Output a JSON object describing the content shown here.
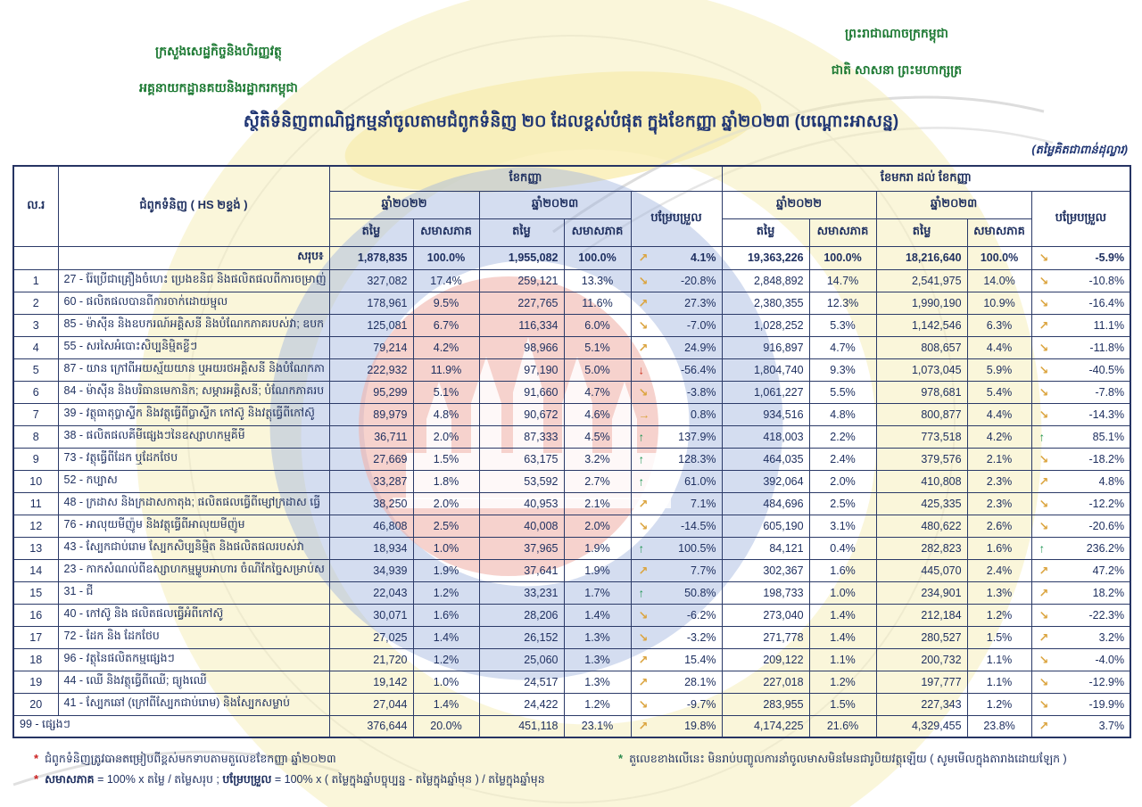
{
  "page": {
    "kingdom_line1": "ព្រះរាជាណាចក្រកម្ពុជា",
    "kingdom_line2": "ជាតិ សាសនា ព្រះមហាក្សត្រ",
    "ministry_line1": "ក្រសួងសេដ្ឋកិច្ចនិងហិរញ្ញវត្ថុ",
    "ministry_line2": "អគ្គនាយកដ្ឋានគយនិងរដ្ឋាករកម្ពុជា",
    "title": "ស្ថិតិទំនិញពាណិជ្ជកម្មនាំចូលតាមជំពូកទំនិញ ២០ ដែលខ្ពស់បំផុត ក្នុងខែកញ្ញា ឆ្នាំ២០២៣ (បណ្ដោះអាសន្ន)",
    "unit_note": "(តម្លៃគិតជាពាន់ដុល្លារ)"
  },
  "table": {
    "headers": {
      "no": "ល.រ",
      "commodity": "ជំពូកទំនិញ ( HS ២ខ្ទង់ )",
      "september": "ខែកញ្ញា",
      "jan_to_sep": "ខែមករា ដល់ ខែកញ្ញា",
      "year2022": "ឆ្នាំ២០២២",
      "year2023": "ឆ្នាំ២០២៣",
      "value": "តម្លៃ",
      "share": "សមាសភាគ",
      "change": "បម្រែបម្រួល"
    },
    "total": {
      "label": "សរុប៖",
      "s22v": "1,878,835",
      "s22s": "100.0%",
      "s23v": "1,955,082",
      "s23s": "100.0%",
      "c1": "4.1%",
      "d1": "ne",
      "y22v": "19,363,226",
      "y22s": "100.0%",
      "y23v": "18,216,640",
      "y23s": "100.0%",
      "c2": "-5.9%",
      "d2": "se"
    },
    "rows": [
      {
        "no": "1",
        "desc": "27 - រ៉ែប្រើជាគ្រឿងចំហេះ ប្រេងខនិជ និងផលិតផលពីការចម្រាញ់",
        "s22v": "327,082",
        "s22s": "17.4%",
        "s23v": "259,121",
        "s23s": "13.3%",
        "c1": "-20.8%",
        "d1": "se",
        "y22v": "2,848,892",
        "y22s": "14.7%",
        "y23v": "2,541,975",
        "y23s": "14.0%",
        "c2": "-10.8%",
        "d2": "se"
      },
      {
        "no": "2",
        "desc": "60 - ផលិតផលបានពីការចាក់ដោយម្ជុល",
        "s22v": "178,961",
        "s22s": "9.5%",
        "s23v": "227,765",
        "s23s": "11.6%",
        "c1": "27.3%",
        "d1": "ne",
        "y22v": "2,380,355",
        "y22s": "12.3%",
        "y23v": "1,990,190",
        "y23s": "10.9%",
        "c2": "-16.4%",
        "d2": "se"
      },
      {
        "no": "3",
        "desc": "85 - ម៉ាស៊ីន និងឧបករណ៍អគ្គិសនី និងបំណែកភាគរបស់វា; ឧបក",
        "s22v": "125,081",
        "s22s": "6.7%",
        "s23v": "116,334",
        "s23s": "6.0%",
        "c1": "-7.0%",
        "d1": "se",
        "y22v": "1,028,252",
        "y22s": "5.3%",
        "y23v": "1,142,546",
        "y23s": "6.3%",
        "c2": "11.1%",
        "d2": "ne"
      },
      {
        "no": "4",
        "desc": "55 - សរសៃអំបោះសិប្បនិម្មិតខ្លីៗ",
        "s22v": "79,214",
        "s22s": "4.2%",
        "s23v": "98,966",
        "s23s": "5.1%",
        "c1": "24.9%",
        "d1": "ne",
        "y22v": "916,897",
        "y22s": "4.7%",
        "y23v": "808,657",
        "y23s": "4.4%",
        "c2": "-11.8%",
        "d2": "se"
      },
      {
        "no": "5",
        "desc": "87 - យាន ក្រៅពីអយស្ម័យយាន ឬអយរថអគ្គិសនី និងបំណែកភា",
        "s22v": "222,932",
        "s22s": "11.9%",
        "s23v": "97,190",
        "s23s": "5.0%",
        "c1": "-56.4%",
        "d1": "down",
        "y22v": "1,804,740",
        "y22s": "9.3%",
        "y23v": "1,073,045",
        "y23s": "5.9%",
        "c2": "-40.5%",
        "d2": "se"
      },
      {
        "no": "6",
        "desc": "84 - ម៉ាស៊ីន និងបរិធានមេកានិក; សម្ភារអគ្គិសនី; បំណែកភាគរប",
        "s22v": "95,299",
        "s22s": "5.1%",
        "s23v": "91,660",
        "s23s": "4.7%",
        "c1": "-3.8%",
        "d1": "se",
        "y22v": "1,061,227",
        "y22s": "5.5%",
        "y23v": "978,681",
        "y23s": "5.4%",
        "c2": "-7.8%",
        "d2": "se"
      },
      {
        "no": "7",
        "desc": "39 - វត្ថុធាតុប្លាស្ទីក និងវត្ថុធ្វើពីប្លាស្ទីក កៅស៊ូ និងវត្ថុធ្វើពីកៅស៊ូ",
        "s22v": "89,979",
        "s22s": "4.8%",
        "s23v": "90,672",
        "s23s": "4.6%",
        "c1": "0.8%",
        "d1": "flat",
        "y22v": "934,516",
        "y22s": "4.8%",
        "y23v": "800,877",
        "y23s": "4.4%",
        "c2": "-14.3%",
        "d2": "se"
      },
      {
        "no": "8",
        "desc": "38 - ផលិតផលគីមីផ្សេងៗនៃឧស្សាហកម្មគីមី",
        "s22v": "36,711",
        "s22s": "2.0%",
        "s23v": "87,333",
        "s23s": "4.5%",
        "c1": "137.9%",
        "d1": "up",
        "y22v": "418,003",
        "y22s": "2.2%",
        "y23v": "773,518",
        "y23s": "4.2%",
        "c2": "85.1%",
        "d2": "up"
      },
      {
        "no": "9",
        "desc": "73 - វត្ថុធ្វើពីដែក ឬដែកថែប",
        "s22v": "27,669",
        "s22s": "1.5%",
        "s23v": "63,175",
        "s23s": "3.2%",
        "c1": "128.3%",
        "d1": "up",
        "y22v": "464,035",
        "y22s": "2.4%",
        "y23v": "379,576",
        "y23s": "2.1%",
        "c2": "-18.2%",
        "d2": "se"
      },
      {
        "no": "10",
        "desc": "52 - កប្បាស",
        "s22v": "33,287",
        "s22s": "1.8%",
        "s23v": "53,592",
        "s23s": "2.7%",
        "c1": "61.0%",
        "d1": "up",
        "y22v": "392,064",
        "y22s": "2.0%",
        "y23v": "410,808",
        "y23s": "2.3%",
        "c2": "4.8%",
        "d2": "ne"
      },
      {
        "no": "11",
        "desc": "48 - ក្រដាស និងក្រដាសកាតុង; ផលិតផលធ្វើពីម្សៅក្រដាស ធ្វើ",
        "s22v": "38,250",
        "s22s": "2.0%",
        "s23v": "40,953",
        "s23s": "2.1%",
        "c1": "7.1%",
        "d1": "ne",
        "y22v": "484,696",
        "y22s": "2.5%",
        "y23v": "425,335",
        "y23s": "2.3%",
        "c2": "-12.2%",
        "d2": "se"
      },
      {
        "no": "12",
        "desc": "76 - អាលុយមីញ៉ូម និងវត្ថុធ្វើពីអាលុយមីញ៉ូម",
        "s22v": "46,808",
        "s22s": "2.5%",
        "s23v": "40,008",
        "s23s": "2.0%",
        "c1": "-14.5%",
        "d1": "se",
        "y22v": "605,190",
        "y22s": "3.1%",
        "y23v": "480,622",
        "y23s": "2.6%",
        "c2": "-20.6%",
        "d2": "se"
      },
      {
        "no": "13",
        "desc": "43 - ស្បែកជាប់រោម ស្បែកសិប្បនិម្មិត និងផលិតផលរបស់វា",
        "s22v": "18,934",
        "s22s": "1.0%",
        "s23v": "37,965",
        "s23s": "1.9%",
        "c1": "100.5%",
        "d1": "up",
        "y22v": "84,121",
        "y22s": "0.4%",
        "y23v": "282,823",
        "y23s": "1.6%",
        "c2": "236.2%",
        "d2": "up"
      },
      {
        "no": "14",
        "desc": "23 - កាកសំណល់ពីឧស្សាហកម្មម្ហូបអាហារ ចំណីកែច្នៃសម្រាប់ស",
        "s22v": "34,939",
        "s22s": "1.9%",
        "s23v": "37,641",
        "s23s": "1.9%",
        "c1": "7.7%",
        "d1": "ne",
        "y22v": "302,367",
        "y22s": "1.6%",
        "y23v": "445,070",
        "y23s": "2.4%",
        "c2": "47.2%",
        "d2": "ne"
      },
      {
        "no": "15",
        "desc": "31 - ជី",
        "s22v": "22,043",
        "s22s": "1.2%",
        "s23v": "33,231",
        "s23s": "1.7%",
        "c1": "50.8%",
        "d1": "up",
        "y22v": "198,733",
        "y22s": "1.0%",
        "y23v": "234,901",
        "y23s": "1.3%",
        "c2": "18.2%",
        "d2": "ne"
      },
      {
        "no": "16",
        "desc": "40 - កៅស៊ូ និង ផលិតផលធ្វើអំពីកៅស៊ូ",
        "s22v": "30,071",
        "s22s": "1.6%",
        "s23v": "28,206",
        "s23s": "1.4%",
        "c1": "-6.2%",
        "d1": "se",
        "y22v": "273,040",
        "y22s": "1.4%",
        "y23v": "212,184",
        "y23s": "1.2%",
        "c2": "-22.3%",
        "d2": "se"
      },
      {
        "no": "17",
        "desc": "72 - ដែក និង ដែកថែប",
        "s22v": "27,025",
        "s22s": "1.4%",
        "s23v": "26,152",
        "s23s": "1.3%",
        "c1": "-3.2%",
        "d1": "se",
        "y22v": "271,778",
        "y22s": "1.4%",
        "y23v": "280,527",
        "y23s": "1.5%",
        "c2": "3.2%",
        "d2": "ne"
      },
      {
        "no": "18",
        "desc": "96 - វត្ថុនៃផលិតកម្មផ្សេងៗ",
        "s22v": "21,720",
        "s22s": "1.2%",
        "s23v": "25,060",
        "s23s": "1.3%",
        "c1": "15.4%",
        "d1": "ne",
        "y22v": "209,122",
        "y22s": "1.1%",
        "y23v": "200,732",
        "y23s": "1.1%",
        "c2": "-4.0%",
        "d2": "se"
      },
      {
        "no": "19",
        "desc": "44 - ឈើ និងវត្ថុធ្វើពីឈើ; ធ្យូងឈើ",
        "s22v": "19,142",
        "s22s": "1.0%",
        "s23v": "24,517",
        "s23s": "1.3%",
        "c1": "28.1%",
        "d1": "ne",
        "y22v": "227,018",
        "y22s": "1.2%",
        "y23v": "197,777",
        "y23s": "1.1%",
        "c2": "-12.9%",
        "d2": "se"
      },
      {
        "no": "20",
        "desc": "41 - ស្បែកឆៅ (ក្រៅពីស្បែកជាប់រោម) និងស្បែកសម្លាប់",
        "s22v": "27,044",
        "s22s": "1.4%",
        "s23v": "24,422",
        "s23s": "1.2%",
        "c1": "-9.7%",
        "d1": "se",
        "y22v": "283,955",
        "y22s": "1.5%",
        "y23v": "227,343",
        "y23s": "1.2%",
        "c2": "-19.9%",
        "d2": "se"
      }
    ],
    "others": {
      "desc": "99 - ផ្សេងៗ",
      "s22v": "376,644",
      "s22s": "20.0%",
      "s23v": "451,118",
      "s23s": "23.1%",
      "c1": "19.8%",
      "d1": "ne",
      "y22v": "4,174,225",
      "y22s": "21.6%",
      "y23v": "4,329,455",
      "y23s": "23.8%",
      "c2": "3.7%",
      "d2": "ne"
    }
  },
  "footnotes": {
    "sort_note": "ជំពូកទំនិញត្រូវបានតម្រៀបពីខ្ពស់មកទាបតាមតួលេខខែកញ្ញា ឆ្នាំ២០២៣",
    "gold_note": "តួលេខខាងលើនេះ មិនរាប់បញ្ចូលការនាំចូលមាសមិនមែនជារូបិយវត្ថុឡើយ ( សូមមើលក្នុងតារាងដោយឡែក )",
    "formula_label1": "សមាសភាគ",
    "formula_part1": " = 100% x តម្លៃ / តម្លៃសរុប ; ",
    "formula_label2": "បម្រែបម្រួល",
    "formula_part2": " = 100% x ( តម្លៃក្នុងឆ្នាំបច្ចុប្បន្ន - តម្លៃក្នុងឆ្នាំមុន ) / តម្លៃក្នុងឆ្នាំមុន"
  },
  "colors": {
    "navy_text": "#1f3060",
    "title_navy": "#1f3573",
    "ministry_green": "#1e7a34",
    "arrow_up_green": "#27995b",
    "arrow_down_red": "#cc3322",
    "arrow_orange": "#dba43e",
    "border_navy": "#263463",
    "watermark_yellow": "#f6edb6",
    "watermark_blue": "#9fb3dd",
    "watermark_red": "#f0b4ac"
  }
}
